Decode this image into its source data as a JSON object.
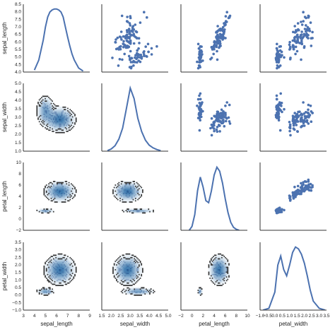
{
  "chart_data": {
    "type": "scatter",
    "subtype": "pairgrid",
    "variables": [
      "sepal_length",
      "sepal_width",
      "petal_length",
      "petal_width"
    ],
    "x_axis_labels": [
      "sepal_length",
      "sepal_width",
      "petal_length",
      "petal_width"
    ],
    "y_axis_labels": [
      "sepal_length",
      "sepal_width",
      "petal_length",
      "petal_width"
    ],
    "ranges": {
      "sepal_length": [
        3.0,
        9.0
      ],
      "sepal_width": [
        1.5,
        5.0
      ],
      "petal_length": [
        -2.0,
        10.0
      ],
      "petal_width": [
        -1.0,
        3.5
      ]
    },
    "y_ranges": {
      "sepal_length": [
        4.0,
        8.5
      ],
      "sepal_width": [
        1.0,
        5.0
      ],
      "petal_length": [
        -2.0,
        10.0
      ],
      "petal_width": [
        -1.0,
        3.5
      ]
    },
    "x_ticks": {
      "sepal_length": [
        "3",
        "4",
        "5",
        "6",
        "7",
        "8",
        "9"
      ],
      "sepal_width": [
        "1.5",
        "2.0",
        "2.5",
        "3.0",
        "3.5",
        "4.0",
        "4.5",
        "5.0"
      ],
      "petal_length": [
        "−2",
        "0",
        "2",
        "4",
        "6",
        "8",
        "10"
      ],
      "petal_width": [
        "−1.0",
        "−0.5",
        "0.0",
        "0.5",
        "1.0",
        "1.5",
        "2.0",
        "2.5",
        "3.0",
        "3.5"
      ]
    },
    "y_ticks": {
      "sepal_length": [
        "4.0",
        "4.5",
        "5.0",
        "5.5",
        "6.0",
        "6.5",
        "7.0",
        "7.5",
        "8.0",
        "8.5"
      ],
      "sepal_width": [
        "1.0",
        "1.5",
        "2.0",
        "2.5",
        "3.0",
        "3.5",
        "4.0",
        "4.5",
        "5.0"
      ],
      "petal_length": [
        "−2",
        "0",
        "2",
        "4",
        "6",
        "8",
        "10"
      ],
      "petal_width": [
        "−1.0",
        "−0.5",
        "0.0",
        "0.5",
        "1.0",
        "1.5",
        "2.0",
        "2.5",
        "3.0",
        "3.5"
      ]
    },
    "upper": "scatter",
    "diagonal": "kde",
    "lower": "kde-contour",
    "colors": {
      "kde_line": "#4c72b0",
      "points": "#4c72b0",
      "contour_dark": "#333333",
      "contour_light": "#d6e6f2",
      "contour_core": "#2d6fa8"
    },
    "diagonal_kde": {
      "sepal_length": {
        "x": [
          4.0,
          4.4,
          4.8,
          5.0,
          5.2,
          5.4,
          5.6,
          5.8,
          6.0,
          6.2,
          6.4,
          6.6,
          6.8,
          7.0,
          7.2,
          7.4,
          7.6,
          7.8,
          8.0,
          8.4
        ],
        "density": [
          0.02,
          0.12,
          0.32,
          0.45,
          0.55,
          0.6,
          0.62,
          0.63,
          0.63,
          0.62,
          0.6,
          0.55,
          0.45,
          0.35,
          0.26,
          0.18,
          0.12,
          0.08,
          0.04,
          0.01
        ]
      },
      "sepal_width": {
        "x": [
          1.8,
          2.0,
          2.2,
          2.4,
          2.6,
          2.8,
          3.0,
          3.2,
          3.4,
          3.6,
          3.8,
          4.0,
          4.2,
          4.4,
          4.6
        ],
        "density": [
          0.01,
          0.04,
          0.1,
          0.22,
          0.42,
          0.78,
          1.15,
          0.96,
          0.6,
          0.36,
          0.2,
          0.11,
          0.06,
          0.03,
          0.01
        ]
      },
      "petal_length": {
        "x": [
          -0.5,
          0.0,
          0.5,
          1.0,
          1.5,
          2.0,
          2.5,
          3.0,
          3.5,
          4.0,
          4.5,
          5.0,
          5.5,
          6.0,
          6.5,
          7.0,
          7.5,
          8.0,
          8.5
        ],
        "density": [
          0.0,
          0.02,
          0.08,
          0.2,
          0.27,
          0.22,
          0.15,
          0.14,
          0.2,
          0.28,
          0.32,
          0.3,
          0.24,
          0.16,
          0.09,
          0.04,
          0.015,
          0.005,
          0.0
        ]
      },
      "petal_width": {
        "x": [
          -0.8,
          -0.4,
          0.0,
          0.2,
          0.4,
          0.6,
          0.8,
          1.0,
          1.2,
          1.4,
          1.6,
          1.8,
          2.0,
          2.2,
          2.4,
          2.6,
          3.0,
          3.4
        ],
        "density": [
          0.0,
          0.02,
          0.2,
          0.5,
          0.6,
          0.45,
          0.38,
          0.5,
          0.64,
          0.7,
          0.68,
          0.62,
          0.52,
          0.38,
          0.22,
          0.1,
          0.02,
          0.0
        ]
      }
    },
    "scatter_samples": {
      "sepal_length": [
        5.1,
        4.9,
        4.7,
        4.6,
        5.0,
        5.4,
        4.6,
        5.0,
        4.4,
        4.9,
        5.4,
        4.8,
        4.8,
        4.3,
        5.8,
        5.7,
        5.4,
        5.1,
        5.7,
        5.1,
        5.4,
        5.1,
        4.6,
        5.1,
        4.8,
        5.0,
        5.0,
        5.2,
        5.2,
        4.7,
        4.8,
        5.4,
        5.2,
        5.5,
        4.9,
        5.0,
        5.5,
        4.9,
        4.4,
        5.1,
        5.0,
        4.5,
        4.4,
        5.0,
        5.1,
        4.8,
        5.1,
        4.6,
        5.3,
        5.0,
        7.0,
        6.4,
        6.9,
        5.5,
        6.5,
        5.7,
        6.3,
        4.9,
        6.6,
        5.2,
        5.0,
        5.9,
        6.0,
        6.1,
        5.6,
        6.7,
        5.6,
        5.8,
        6.2,
        5.6,
        5.9,
        6.1,
        6.3,
        6.1,
        6.4,
        6.6,
        6.8,
        6.7,
        6.0,
        5.7,
        5.5,
        5.5,
        5.8,
        6.0,
        5.4,
        6.0,
        6.7,
        6.3,
        5.6,
        5.5,
        6.3,
        5.8,
        7.1,
        6.3,
        6.5,
        7.6,
        4.9,
        7.3,
        6.7,
        7.2,
        6.5,
        6.4,
        6.8,
        5.7,
        5.8,
        6.4,
        6.5,
        7.7,
        7.7,
        6.0,
        6.9,
        5.6,
        7.7,
        6.3,
        6.7,
        7.2,
        6.2,
        6.1,
        6.4,
        7.2,
        7.4,
        7.9,
        6.4,
        6.3,
        6.1,
        7.7,
        6.3,
        6.4,
        6.0,
        6.9,
        6.7,
        6.9,
        5.8,
        6.8,
        6.7,
        6.7,
        6.3,
        6.5,
        6.2,
        5.9
      ],
      "sepal_width": [
        3.5,
        3.0,
        3.2,
        3.1,
        3.6,
        3.9,
        3.4,
        3.4,
        2.9,
        3.1,
        3.7,
        3.4,
        3.0,
        3.0,
        4.0,
        4.4,
        3.9,
        3.5,
        3.8,
        3.8,
        3.4,
        3.7,
        3.6,
        3.3,
        3.4,
        3.0,
        3.4,
        3.5,
        3.4,
        3.2,
        3.1,
        3.4,
        4.1,
        4.2,
        3.1,
        3.2,
        3.5,
        3.6,
        3.0,
        3.4,
        3.5,
        2.3,
        3.2,
        3.5,
        3.8,
        3.0,
        3.8,
        3.2,
        3.7,
        3.3,
        3.2,
        3.2,
        3.1,
        2.3,
        2.8,
        2.8,
        3.3,
        2.4,
        2.9,
        2.7,
        2.0,
        3.0,
        2.2,
        2.9,
        2.9,
        3.1,
        3.0,
        2.7,
        2.2,
        2.5,
        3.2,
        2.8,
        2.5,
        2.8,
        2.9,
        3.0,
        2.8,
        3.0,
        2.9,
        2.6,
        2.4,
        2.4,
        2.7,
        2.7,
        3.0,
        3.4,
        3.1,
        2.3,
        3.0,
        2.5,
        3.3,
        2.7,
        3.0,
        2.9,
        3.0,
        3.0,
        2.5,
        2.9,
        2.5,
        3.6,
        3.2,
        2.7,
        3.0,
        2.5,
        2.8,
        3.2,
        3.0,
        3.8,
        2.6,
        2.2,
        3.2,
        2.8,
        2.8,
        2.7,
        3.3,
        3.2,
        2.8,
        3.0,
        2.8,
        3.0,
        2.8,
        3.8,
        2.8,
        2.8,
        2.6,
        3.0,
        3.4,
        3.1,
        3.0,
        3.1,
        3.1,
        3.1,
        2.7,
        3.2,
        3.3,
        3.0,
        2.5,
        3.0,
        3.4,
        3.0
      ],
      "petal_length": [
        1.4,
        1.4,
        1.3,
        1.5,
        1.4,
        1.7,
        1.4,
        1.5,
        1.4,
        1.5,
        1.5,
        1.6,
        1.4,
        1.1,
        1.2,
        1.5,
        1.3,
        1.4,
        1.7,
        1.5,
        1.7,
        1.5,
        1.0,
        1.7,
        1.9,
        1.6,
        1.6,
        1.5,
        1.4,
        1.6,
        1.6,
        1.5,
        1.5,
        1.4,
        1.5,
        1.2,
        1.3,
        1.4,
        1.3,
        1.5,
        1.3,
        1.3,
        1.3,
        1.6,
        1.9,
        1.4,
        1.6,
        1.4,
        1.5,
        1.4,
        4.7,
        4.5,
        4.9,
        4.0,
        4.6,
        4.5,
        4.7,
        3.3,
        4.6,
        3.9,
        3.5,
        4.2,
        4.0,
        4.7,
        3.6,
        4.4,
        4.5,
        4.1,
        4.5,
        3.9,
        4.8,
        4.0,
        4.9,
        4.7,
        4.3,
        4.4,
        4.8,
        5.0,
        4.5,
        3.5,
        3.8,
        3.7,
        3.9,
        5.1,
        4.5,
        4.5,
        4.7,
        4.4,
        4.1,
        4.0,
        6.0,
        5.1,
        5.9,
        5.6,
        5.8,
        6.6,
        4.5,
        6.3,
        5.8,
        6.1,
        5.1,
        5.3,
        5.5,
        5.0,
        5.1,
        5.3,
        5.5,
        6.7,
        6.9,
        5.0,
        5.7,
        4.9,
        6.7,
        4.9,
        5.7,
        6.0,
        4.8,
        4.9,
        5.6,
        5.8,
        6.1,
        6.4,
        5.6,
        5.1,
        5.6,
        6.1,
        5.6,
        5.5,
        4.8,
        5.4,
        5.6,
        5.1,
        5.1,
        5.9,
        5.7,
        5.2,
        5.0,
        5.2,
        5.4,
        5.1
      ],
      "petal_width": [
        0.2,
        0.2,
        0.2,
        0.2,
        0.2,
        0.4,
        0.3,
        0.2,
        0.2,
        0.1,
        0.2,
        0.2,
        0.1,
        0.1,
        0.2,
        0.4,
        0.4,
        0.3,
        0.3,
        0.3,
        0.2,
        0.4,
        0.2,
        0.5,
        0.2,
        0.2,
        0.4,
        0.2,
        0.2,
        0.2,
        0.2,
        0.4,
        0.1,
        0.2,
        0.2,
        0.2,
        0.2,
        0.1,
        0.2,
        0.2,
        0.3,
        0.3,
        0.2,
        0.6,
        0.4,
        0.3,
        0.2,
        0.2,
        0.2,
        0.2,
        1.4,
        1.5,
        1.5,
        1.3,
        1.5,
        1.3,
        1.6,
        1.0,
        1.3,
        1.4,
        1.0,
        1.5,
        1.0,
        1.4,
        1.3,
        1.4,
        1.5,
        1.0,
        1.5,
        1.1,
        1.8,
        1.3,
        1.5,
        1.2,
        1.3,
        1.4,
        1.4,
        1.7,
        1.5,
        1.0,
        1.1,
        1.0,
        1.2,
        1.6,
        1.5,
        1.6,
        1.5,
        1.3,
        1.3,
        1.3,
        2.5,
        1.9,
        2.1,
        1.8,
        2.2,
        2.1,
        1.7,
        1.8,
        1.8,
        2.5,
        2.0,
        1.9,
        2.1,
        2.0,
        2.4,
        2.3,
        1.8,
        2.2,
        2.3,
        1.5,
        2.3,
        2.0,
        2.0,
        1.8,
        2.1,
        1.8,
        1.8,
        1.8,
        2.1,
        1.6,
        1.9,
        2.0,
        2.2,
        1.5,
        1.4,
        2.3,
        2.4,
        1.8,
        1.8,
        2.1,
        2.4,
        2.3,
        1.9,
        2.3,
        2.5,
        2.3,
        1.9,
        2.0,
        2.3,
        1.8
      ]
    },
    "cluster_centers": {
      "sepal_length": [
        5.0,
        6.3
      ],
      "sepal_width": [
        3.42,
        2.87
      ],
      "petal_length": [
        1.46,
        4.9
      ],
      "petal_width": [
        0.25,
        1.68
      ]
    },
    "cluster_spread": {
      "sepal_length": [
        0.35,
        0.6
      ],
      "sepal_width": [
        0.38,
        0.32
      ],
      "petal_length": [
        0.17,
        0.8
      ],
      "petal_width": [
        0.11,
        0.43
      ]
    }
  }
}
